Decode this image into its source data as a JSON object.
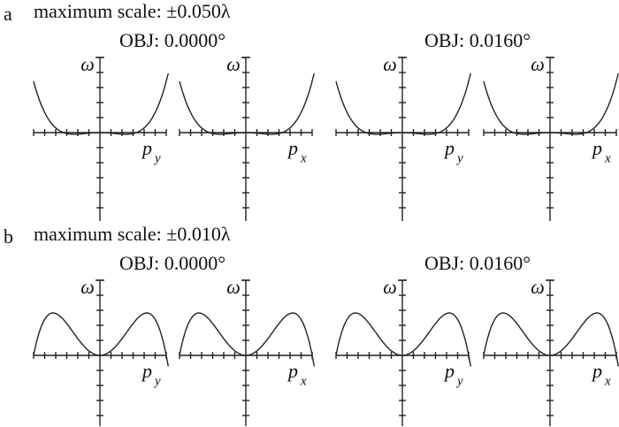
{
  "panels": [
    {
      "label": "a",
      "scale": "maximum scale: ±0.050λ",
      "groups": [
        {
          "title": "OBJ: 0.0000°",
          "plots": [
            {
              "y_label": "ω",
              "x_label": "p",
              "x_sub": "y"
            },
            {
              "y_label": "ω",
              "x_label": "p",
              "x_sub": "x"
            }
          ]
        },
        {
          "title": "OBJ: 0.0160°",
          "plots": [
            {
              "y_label": "ω",
              "x_label": "p",
              "x_sub": "y"
            },
            {
              "y_label": "ω",
              "x_label": "p",
              "x_sub": "x"
            }
          ]
        }
      ]
    },
    {
      "label": "b",
      "scale": "maximum scale: ±0.010λ",
      "groups": [
        {
          "title": "OBJ: 0.0000°",
          "plots": [
            {
              "y_label": "ω",
              "x_label": "p",
              "x_sub": "y"
            },
            {
              "y_label": "ω",
              "x_label": "p",
              "x_sub": "x"
            }
          ]
        },
        {
          "title": "OBJ: 0.0160°",
          "plots": [
            {
              "y_label": "ω",
              "x_label": "p",
              "x_sub": "y"
            },
            {
              "y_label": "ω",
              "x_label": "p",
              "x_sub": "x"
            }
          ]
        }
      ]
    }
  ]
}
